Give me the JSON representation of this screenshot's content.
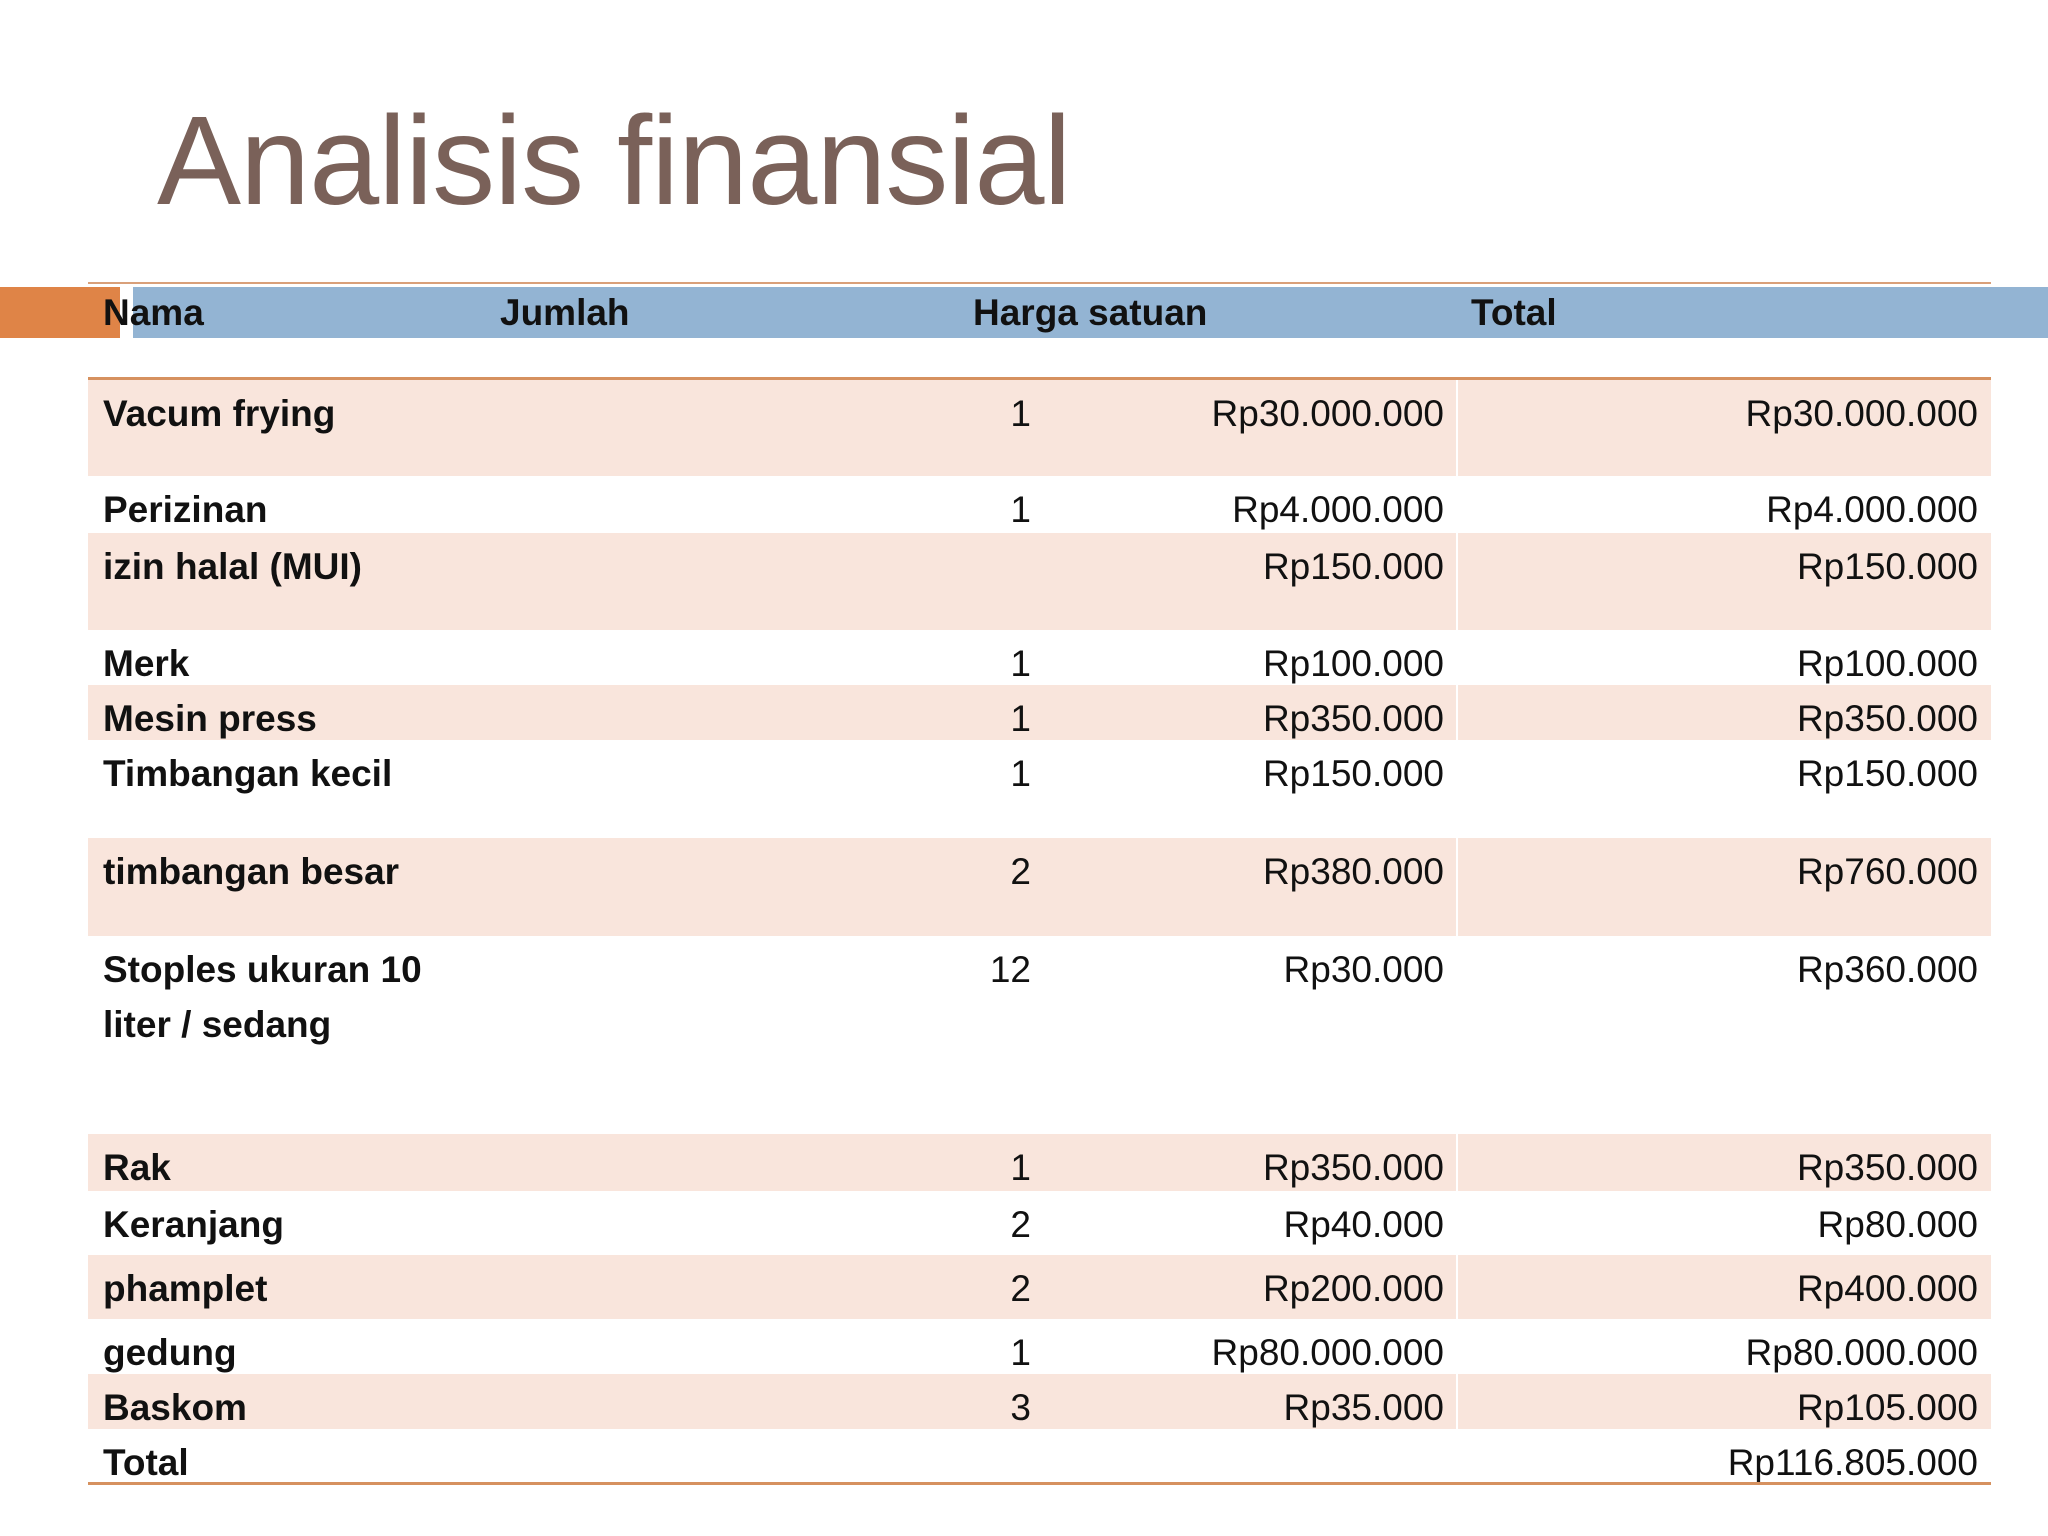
{
  "slide": {
    "title": "Analisis finansial"
  },
  "colors": {
    "title": "#7a6159",
    "accent_orange": "#df8447",
    "header_blue": "#93b4d3",
    "row_shade": "#f9e5dc"
  },
  "table": {
    "headers": {
      "name": "Nama",
      "qty": "Jumlah",
      "price": "Harga satuan",
      "total": "Total"
    },
    "rows": [
      {
        "name": "Vacum frying",
        "qty": "1",
        "price": "Rp30.000.000",
        "total": "Rp30.000.000"
      },
      {
        "name": "Perizinan",
        "qty": "1",
        "price": "Rp4.000.000",
        "total": "Rp4.000.000"
      },
      {
        "name": "izin halal (MUI)",
        "qty": "",
        "price": "Rp150.000",
        "total": "Rp150.000"
      },
      {
        "name": "Merk",
        "qty": "1",
        "price": "Rp100.000",
        "total": "Rp100.000"
      },
      {
        "name": "Mesin press",
        "qty": "1",
        "price": "Rp350.000",
        "total": "Rp350.000"
      },
      {
        "name": "Timbangan kecil",
        "qty": "1",
        "price": "Rp150.000",
        "total": "Rp150.000"
      },
      {
        "name": "timbangan besar",
        "qty": "2",
        "price": "Rp380.000",
        "total": "Rp760.000"
      },
      {
        "name": "Stoples ukuran 10\nliter  / sedang",
        "qty": "12",
        "price": "Rp30.000",
        "total": "Rp360.000"
      },
      {
        "name": "Rak",
        "qty": "1",
        "price": "Rp350.000",
        "total": "Rp350.000"
      },
      {
        "name": "Keranjang",
        "qty": "2",
        "price": "Rp40.000",
        "total": "Rp80.000"
      },
      {
        "name": "phamplet",
        "qty": "2",
        "price": "Rp200.000",
        "total": "Rp400.000"
      },
      {
        "name": "gedung",
        "qty": "1",
        "price": "Rp80.000.000",
        "total": "Rp80.000.000"
      },
      {
        "name": "Baskom",
        "qty": "3",
        "price": "Rp35.000",
        "total": "Rp105.000"
      },
      {
        "name": "Total",
        "qty": "",
        "price": "",
        "total": "Rp116.805.000"
      }
    ]
  }
}
